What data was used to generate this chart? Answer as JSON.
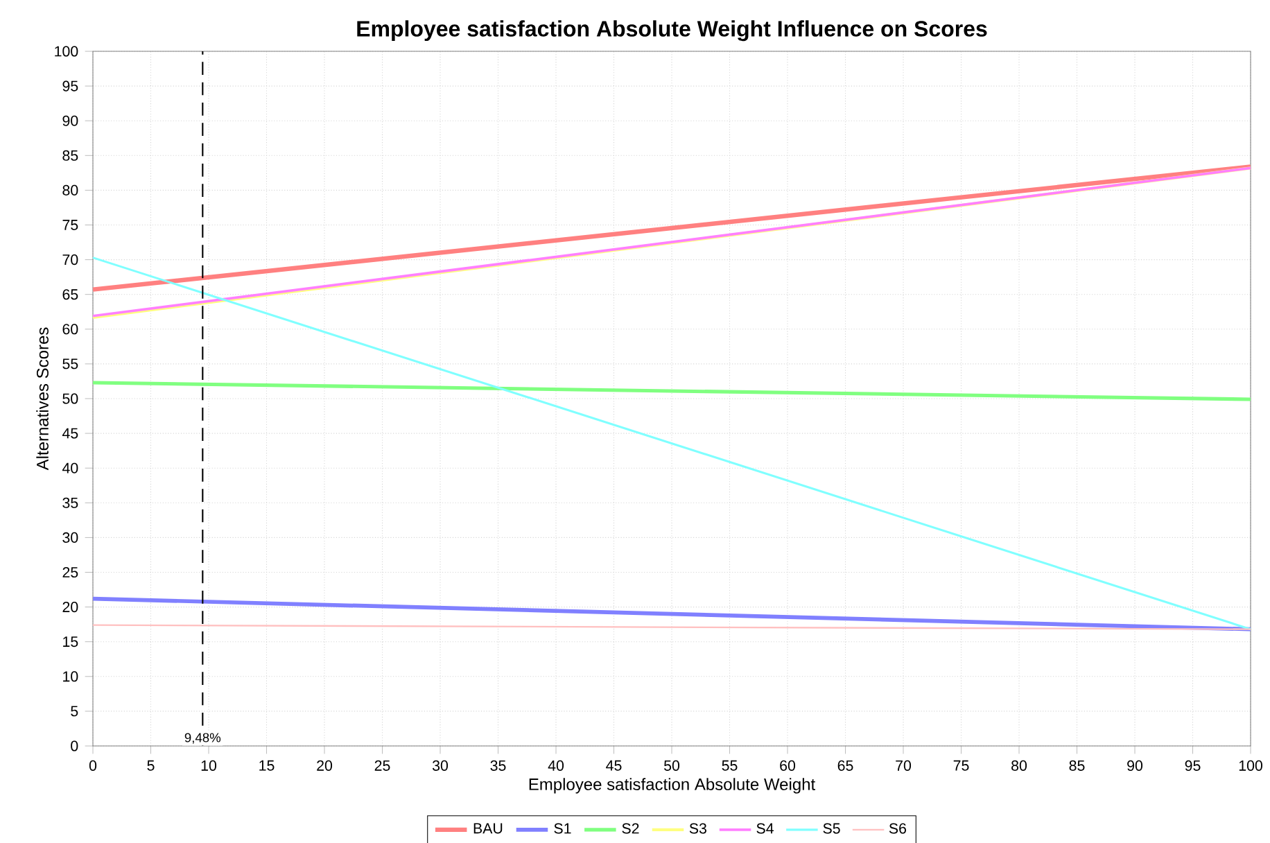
{
  "chart_data": {
    "type": "line",
    "title": "Employee satisfaction Absolute Weight Influence on Scores",
    "xlabel": "Employee satisfaction Absolute Weight",
    "ylabel": "Alternatives Scores",
    "x": [
      0,
      100
    ],
    "series": [
      {
        "name": "BAU",
        "color": "#ff8080",
        "values": [
          65.7,
          83.4
        ]
      },
      {
        "name": "S1",
        "color": "#8080ff",
        "values": [
          21.2,
          16.8
        ]
      },
      {
        "name": "S2",
        "color": "#80ff80",
        "values": [
          52.3,
          49.9
        ]
      },
      {
        "name": "S3",
        "color": "#ffff80",
        "values": [
          61.7,
          83.2
        ]
      },
      {
        "name": "S4",
        "color": "#ff80ff",
        "values": [
          61.9,
          83.2
        ]
      },
      {
        "name": "S5",
        "color": "#80ffff",
        "values": [
          70.3,
          16.8
        ]
      },
      {
        "name": "S6",
        "color": "#ffc0c0",
        "values": [
          17.4,
          16.8
        ]
      }
    ],
    "xlim": [
      0,
      100
    ],
    "xticks": [
      0,
      5,
      10,
      15,
      20,
      25,
      30,
      35,
      40,
      45,
      50,
      55,
      60,
      65,
      70,
      75,
      80,
      85,
      90,
      95,
      100
    ],
    "ylim": [
      0,
      100
    ],
    "yticks": [
      0,
      5,
      10,
      15,
      20,
      25,
      30,
      35,
      40,
      45,
      50,
      55,
      60,
      65,
      70,
      75,
      80,
      85,
      90,
      95,
      100
    ],
    "ref_lines": [
      {
        "axis": "x",
        "value": 9.48,
        "label": "9,48%",
        "color": "#000000",
        "line_style": "dashed"
      }
    ],
    "grid": true,
    "legend": "bottom",
    "marker": "none",
    "line_style": "solid"
  }
}
